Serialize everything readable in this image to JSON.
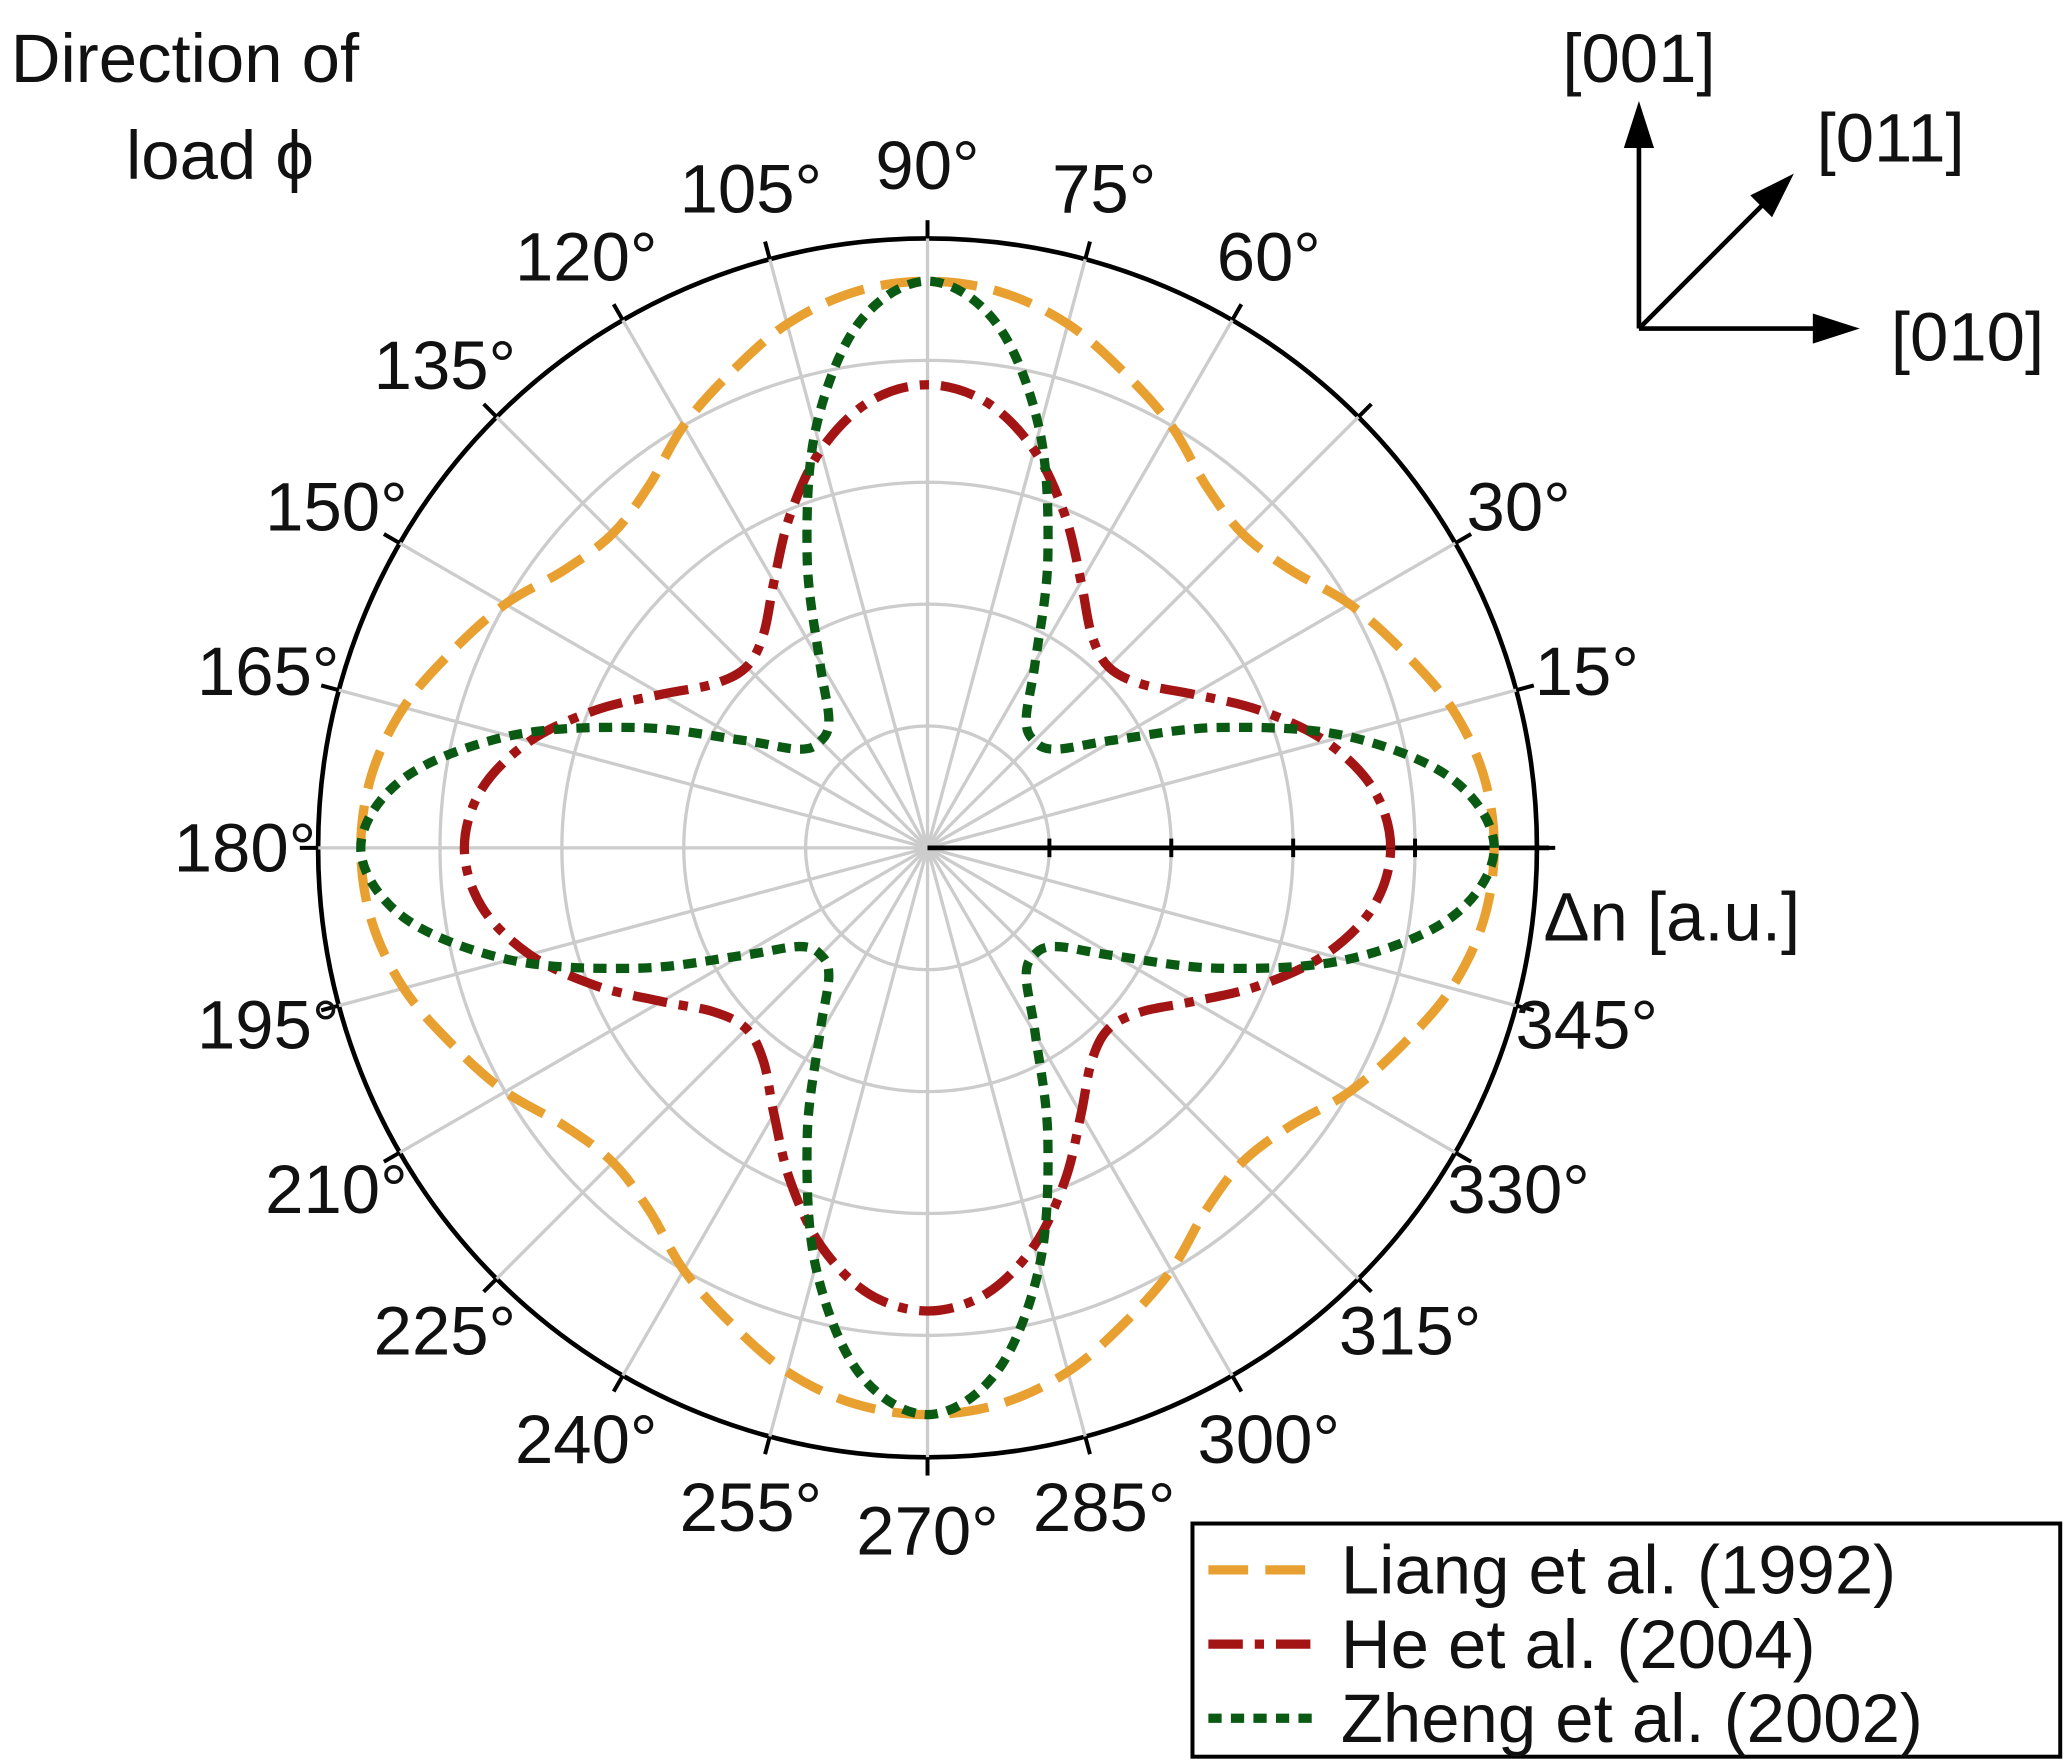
{
  "chart_data": {
    "type": "polar-line",
    "title": "",
    "angle_label": [
      "Direction of",
      "load ϕ"
    ],
    "radial_label": "Δn [a.u.]",
    "radial_range": [
      0,
      5
    ],
    "radial_ticks": [
      1,
      2,
      3,
      4,
      5
    ],
    "angle_ticks_deg": [
      15,
      30,
      45,
      60,
      75,
      90,
      105,
      120,
      135,
      150,
      165,
      180,
      195,
      210,
      225,
      240,
      255,
      270,
      285,
      300,
      315,
      330,
      345
    ],
    "angle_tick_labels": [
      "15°",
      "30°",
      "",
      "60°",
      "75°",
      "90°",
      "105°",
      "120°",
      "135°",
      "150°",
      "165°",
      "180°",
      "195°",
      "210°",
      "225°",
      "240°",
      "255°",
      "270°",
      "285°",
      "300°",
      "315°",
      "330°",
      "345°"
    ],
    "grid": true,
    "angle_step_deg": 7.5,
    "series": [
      {
        "name": "Liang et al. (1992)",
        "color": "#E8A030",
        "style": "dashed",
        "values": [
          4.65,
          4.6,
          4.45,
          4.22,
          4.0,
          3.75,
          3.65,
          3.75,
          4.0,
          4.22,
          4.45,
          4.6,
          4.65,
          4.6,
          4.45,
          4.22,
          4.0,
          3.75,
          3.65,
          3.75,
          4.0,
          4.22,
          4.45,
          4.6,
          4.65,
          4.6,
          4.45,
          4.22,
          4.0,
          3.75,
          3.65,
          3.75,
          4.0,
          4.22,
          4.45,
          4.6,
          4.65,
          4.6,
          4.45,
          4.22,
          4.0,
          3.75,
          3.65,
          3.75,
          4.0,
          4.22,
          4.45,
          4.6
        ]
      },
      {
        "name": "He et al. (2004)",
        "color": "#A31515",
        "style": "dashdot",
        "values": [
          3.8,
          3.69,
          3.38,
          2.95,
          2.52,
          2.21,
          2.1,
          2.21,
          2.52,
          2.95,
          3.38,
          3.69,
          3.8,
          3.69,
          3.38,
          2.95,
          2.52,
          2.21,
          2.1,
          2.21,
          2.52,
          2.95,
          3.38,
          3.69,
          3.8,
          3.69,
          3.38,
          2.95,
          2.52,
          2.21,
          2.1,
          2.21,
          2.52,
          2.95,
          3.38,
          3.69,
          3.8,
          3.69,
          3.38,
          2.95,
          2.52,
          2.21,
          2.1,
          2.21,
          2.52,
          2.95,
          3.38,
          3.69
        ]
      },
      {
        "name": "Zheng et al. (2002)",
        "color": "#0B5A14",
        "style": "dotted",
        "values": [
          4.65,
          4.34,
          3.55,
          2.58,
          1.77,
          1.33,
          1.24,
          1.33,
          1.77,
          2.58,
          3.55,
          4.34,
          4.65,
          4.34,
          3.55,
          2.58,
          1.77,
          1.33,
          1.24,
          1.33,
          1.77,
          2.58,
          3.55,
          4.34,
          4.65,
          4.34,
          3.55,
          2.58,
          1.77,
          1.33,
          1.24,
          1.33,
          1.77,
          2.58,
          3.55,
          4.34,
          4.65,
          4.34,
          3.55,
          2.58,
          1.77,
          1.33,
          1.24,
          1.33,
          1.77,
          2.58,
          3.55,
          4.34
        ]
      }
    ],
    "legend_position": "bottom-right",
    "crystal_axes": [
      "[001]",
      "[011]",
      "[010]"
    ]
  }
}
